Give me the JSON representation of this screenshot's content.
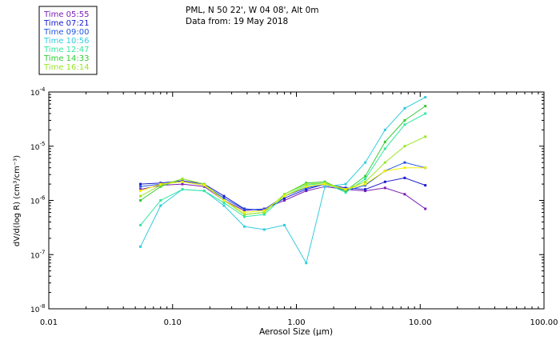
{
  "header": {
    "line1": "PML, N 50 22', W 04 08', Alt 0m",
    "line2": "Data from: 19 May 2018"
  },
  "colors": {
    "axis": "#000000",
    "background": "#ffffff"
  },
  "chart_data": {
    "type": "line",
    "x_scale": "log",
    "y_scale": "log",
    "xlim": [
      0.01,
      100
    ],
    "ylim": [
      1e-08,
      0.0001
    ],
    "xlabel": "Aerosol Size (µm)",
    "ylabel": "dV/d(log R) (cm³/cm⁻³)",
    "x_tick_labels": [
      "0.01",
      "0.10",
      "1.00",
      "10.00",
      "100.00"
    ],
    "y_tick_labels": [
      {
        "base": "10",
        "exp": "-4"
      },
      {
        "base": "10",
        "exp": "-5"
      },
      {
        "base": "10",
        "exp": "-6"
      },
      {
        "base": "10",
        "exp": "-7"
      },
      {
        "base": "10",
        "exp": "-8"
      }
    ],
    "x": [
      0.055,
      0.08,
      0.12,
      0.18,
      0.26,
      0.38,
      0.55,
      0.8,
      1.2,
      1.7,
      2.5,
      3.6,
      5.2,
      7.5,
      11.0
    ],
    "series": [
      {
        "name": "Time 05:55",
        "color": "#7a1fb5",
        "values": [
          1.6e-06,
          1.9e-06,
          2e-06,
          1.8e-06,
          1e-06,
          6.5e-07,
          7e-07,
          1e-06,
          1.5e-06,
          1.8e-06,
          1.6e-06,
          1.5e-06,
          1.7e-06,
          1.3e-06,
          7e-07
        ]
      },
      {
        "name": "Time 07:21",
        "color": "#1a1acc",
        "values": [
          2e-06,
          2.1e-06,
          2.3e-06,
          2e-06,
          1.2e-06,
          7e-07,
          6.5e-07,
          1.1e-06,
          1.6e-06,
          2e-06,
          1.7e-06,
          1.6e-06,
          2.2e-06,
          2.6e-06,
          1.9e-06
        ]
      },
      {
        "name": "Time 09:00",
        "color": "#2255e0",
        "values": [
          1.8e-06,
          2e-06,
          2.2e-06,
          1.9e-06,
          1.1e-06,
          6.8e-07,
          6.8e-07,
          1.2e-06,
          1.7e-06,
          2e-06,
          1.5e-06,
          1.9e-06,
          3.5e-06,
          5e-06,
          4e-06
        ]
      },
      {
        "name": "Time 10:56",
        "color": "#33ccdd",
        "values": [
          1.4e-07,
          8e-07,
          1.6e-06,
          1.5e-06,
          8e-07,
          3.3e-07,
          2.9e-07,
          3.5e-07,
          7e-08,
          1.8e-06,
          2e-06,
          5e-06,
          2e-05,
          5e-05,
          8e-05
        ]
      },
      {
        "name": "Time 12:47",
        "color": "#33e8a0",
        "values": [
          3.5e-07,
          1e-06,
          1.6e-06,
          1.5e-06,
          9e-07,
          5e-07,
          5.5e-07,
          1.2e-06,
          1.9e-06,
          2.1e-06,
          1.4e-06,
          2.5e-06,
          9e-06,
          2.5e-05,
          4e-05
        ]
      },
      {
        "name": "Time 14:33",
        "color": "#33cc33",
        "values": [
          1e-06,
          1.8e-06,
          2.5e-06,
          2e-06,
          1e-06,
          5.5e-07,
          6e-07,
          1.3e-06,
          2.1e-06,
          2.2e-06,
          1.5e-06,
          2.8e-06,
          1.2e-05,
          3e-05,
          5.5e-05
        ]
      },
      {
        "name": "Time 16:14",
        "color": "#99e628",
        "values": [
          1.2e-06,
          1.9e-06,
          2.5e-06,
          2e-06,
          1e-06,
          5.5e-07,
          6e-07,
          1.3e-06,
          2e-06,
          2.1e-06,
          1.6e-06,
          2.2e-06,
          5e-06,
          1e-05,
          1.5e-05
        ]
      },
      {
        "name": "",
        "color": "#f2f200",
        "values": [
          1.5e-06,
          2e-06,
          2.2e-06,
          1.9e-06,
          1e-06,
          6e-07,
          6.5e-07,
          1.2e-06,
          1.8e-06,
          2e-06,
          1.6e-06,
          2e-06,
          3.5e-06,
          4e-06,
          4e-06
        ]
      }
    ]
  }
}
